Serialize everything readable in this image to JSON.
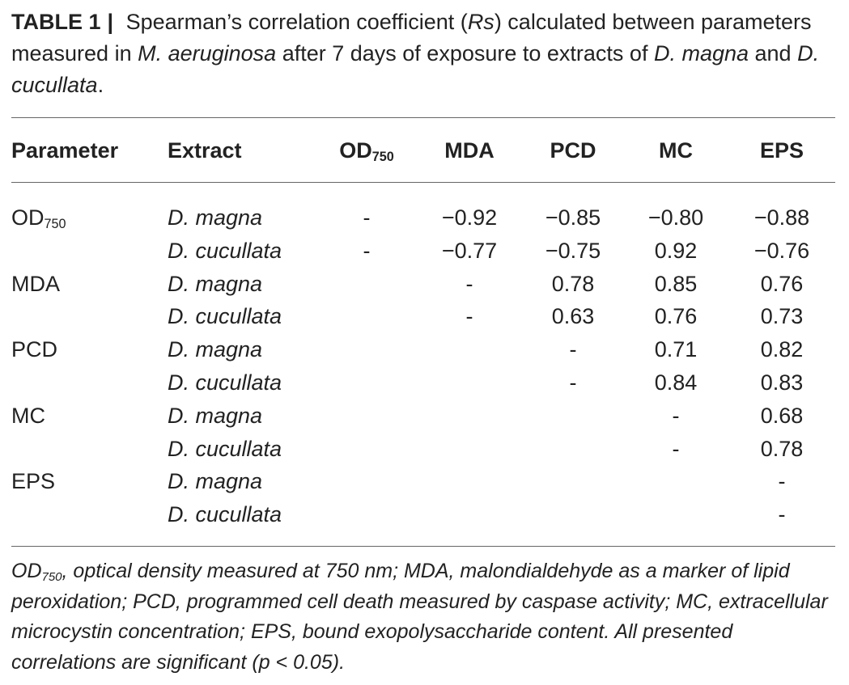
{
  "caption": {
    "label": "TABLE 1",
    "separator": "|",
    "text_1": " Spearman’s correlation coefficient (",
    "rs": "Rs",
    "text_2": ") calculated between parameters measured in ",
    "species_1": "M. aeruginosa",
    "text_3": " after 7 days of exposure to extracts of ",
    "species_2": "D. magna",
    "text_4": " and ",
    "species_3": "D. cucullata",
    "text_5": "."
  },
  "header": {
    "parameter": "Parameter",
    "extract": "Extract",
    "od_base": "OD",
    "od_sub": "750",
    "mda": "MDA",
    "pcd": "PCD",
    "mc": "MC",
    "eps": "EPS"
  },
  "rows": [
    {
      "parameter": "OD",
      "parameter_sub": "750",
      "extract": "D. magna",
      "od": "-",
      "mda": "−0.92",
      "pcd": "−0.85",
      "mc": "−0.80",
      "eps": "−0.88"
    },
    {
      "parameter": "",
      "parameter_sub": "",
      "extract": "D. cucullata",
      "od": "-",
      "mda": "−0.77",
      "pcd": "−0.75",
      "mc": "0.92",
      "eps": "−0.76"
    },
    {
      "parameter": "MDA",
      "parameter_sub": "",
      "extract": "D. magna",
      "od": "",
      "mda": "-",
      "pcd": "0.78",
      "mc": "0.85",
      "eps": "0.76"
    },
    {
      "parameter": "",
      "parameter_sub": "",
      "extract": "D. cucullata",
      "od": "",
      "mda": "-",
      "pcd": "0.63",
      "mc": "0.76",
      "eps": "0.73"
    },
    {
      "parameter": "PCD",
      "parameter_sub": "",
      "extract": "D. magna",
      "od": "",
      "mda": "",
      "pcd": "-",
      "mc": "0.71",
      "eps": "0.82"
    },
    {
      "parameter": "",
      "parameter_sub": "",
      "extract": "D. cucullata",
      "od": "",
      "mda": "",
      "pcd": "-",
      "mc": "0.84",
      "eps": "0.83"
    },
    {
      "parameter": "MC",
      "parameter_sub": "",
      "extract": "D. magna",
      "od": "",
      "mda": "",
      "pcd": "",
      "mc": "-",
      "eps": "0.68"
    },
    {
      "parameter": "",
      "parameter_sub": "",
      "extract": "D. cucullata",
      "od": "",
      "mda": "",
      "pcd": "",
      "mc": "-",
      "eps": "0.78"
    },
    {
      "parameter": "EPS",
      "parameter_sub": "",
      "extract": "D. magna",
      "od": "",
      "mda": "",
      "pcd": "",
      "mc": "",
      "eps": "-"
    },
    {
      "parameter": "",
      "parameter_sub": "",
      "extract": "D. cucullata",
      "od": "",
      "mda": "",
      "pcd": "",
      "mc": "",
      "eps": "-"
    }
  ],
  "footnote": {
    "od_base": "OD",
    "od_sub": "750",
    "text": ", optical density measured at 750 nm; MDA, malondialdehyde as a marker of lipid peroxidation; PCD, programmed cell death measured by caspase activity; MC, extracellular microcystin concentration; EPS, bound exopolysaccharide content. All presented correlations are significant (p < 0.05)."
  }
}
